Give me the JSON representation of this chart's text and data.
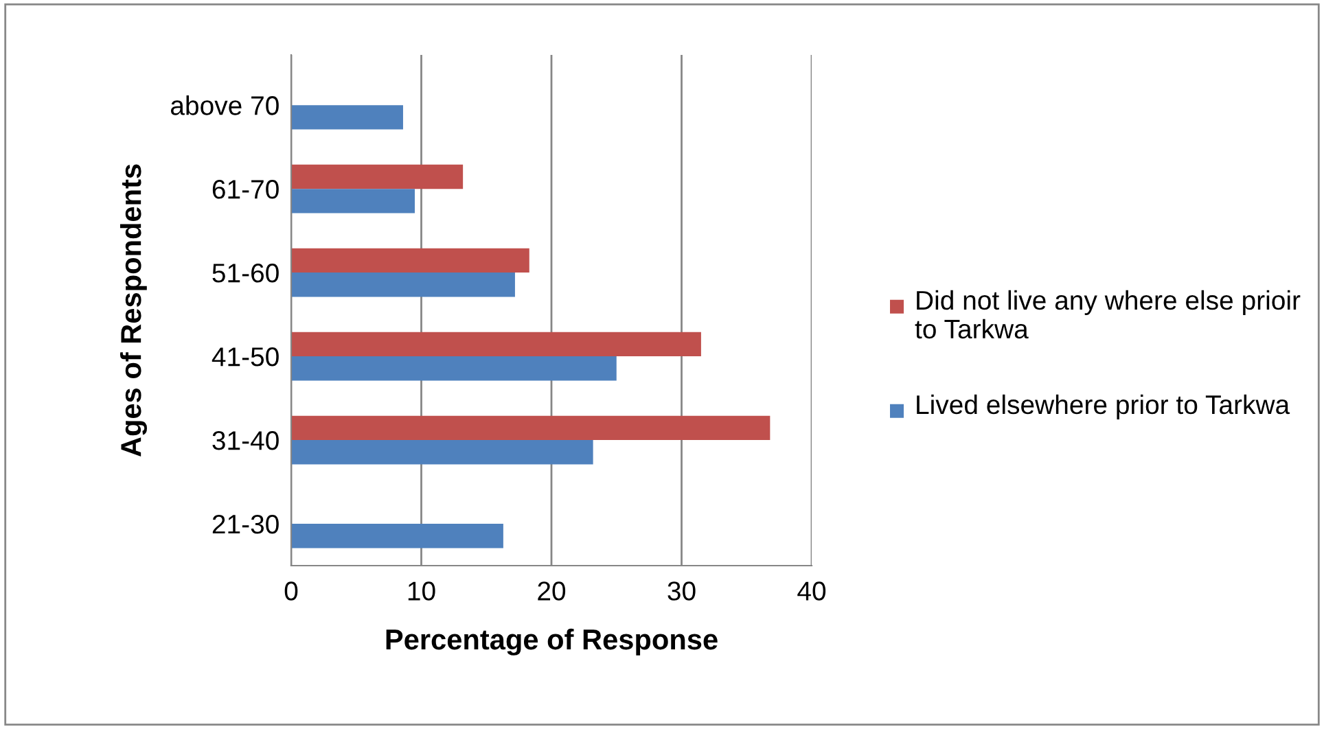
{
  "chart_data": {
    "type": "bar",
    "orientation": "horizontal",
    "xlabel": "Percentage of Response",
    "ylabel": "Ages of Respondents",
    "categories": [
      "above 70",
      "61-70",
      "51-60",
      "41-50",
      "31-40",
      "21-30"
    ],
    "series": [
      {
        "name": "Did not live any where else prioir to Tarkwa",
        "color": "#c0504d",
        "values": [
          null,
          13.2,
          18.3,
          31.5,
          36.8,
          null
        ]
      },
      {
        "name": "Lived elsewhere prior to Tarkwa",
        "color": "#4f81bd",
        "values": [
          8.6,
          9.5,
          17.2,
          25.0,
          23.2,
          16.3
        ]
      }
    ],
    "xlim": [
      0,
      40
    ],
    "xticks": [
      0,
      10,
      20,
      30,
      40
    ],
    "grid": "x",
    "legend": "right"
  }
}
